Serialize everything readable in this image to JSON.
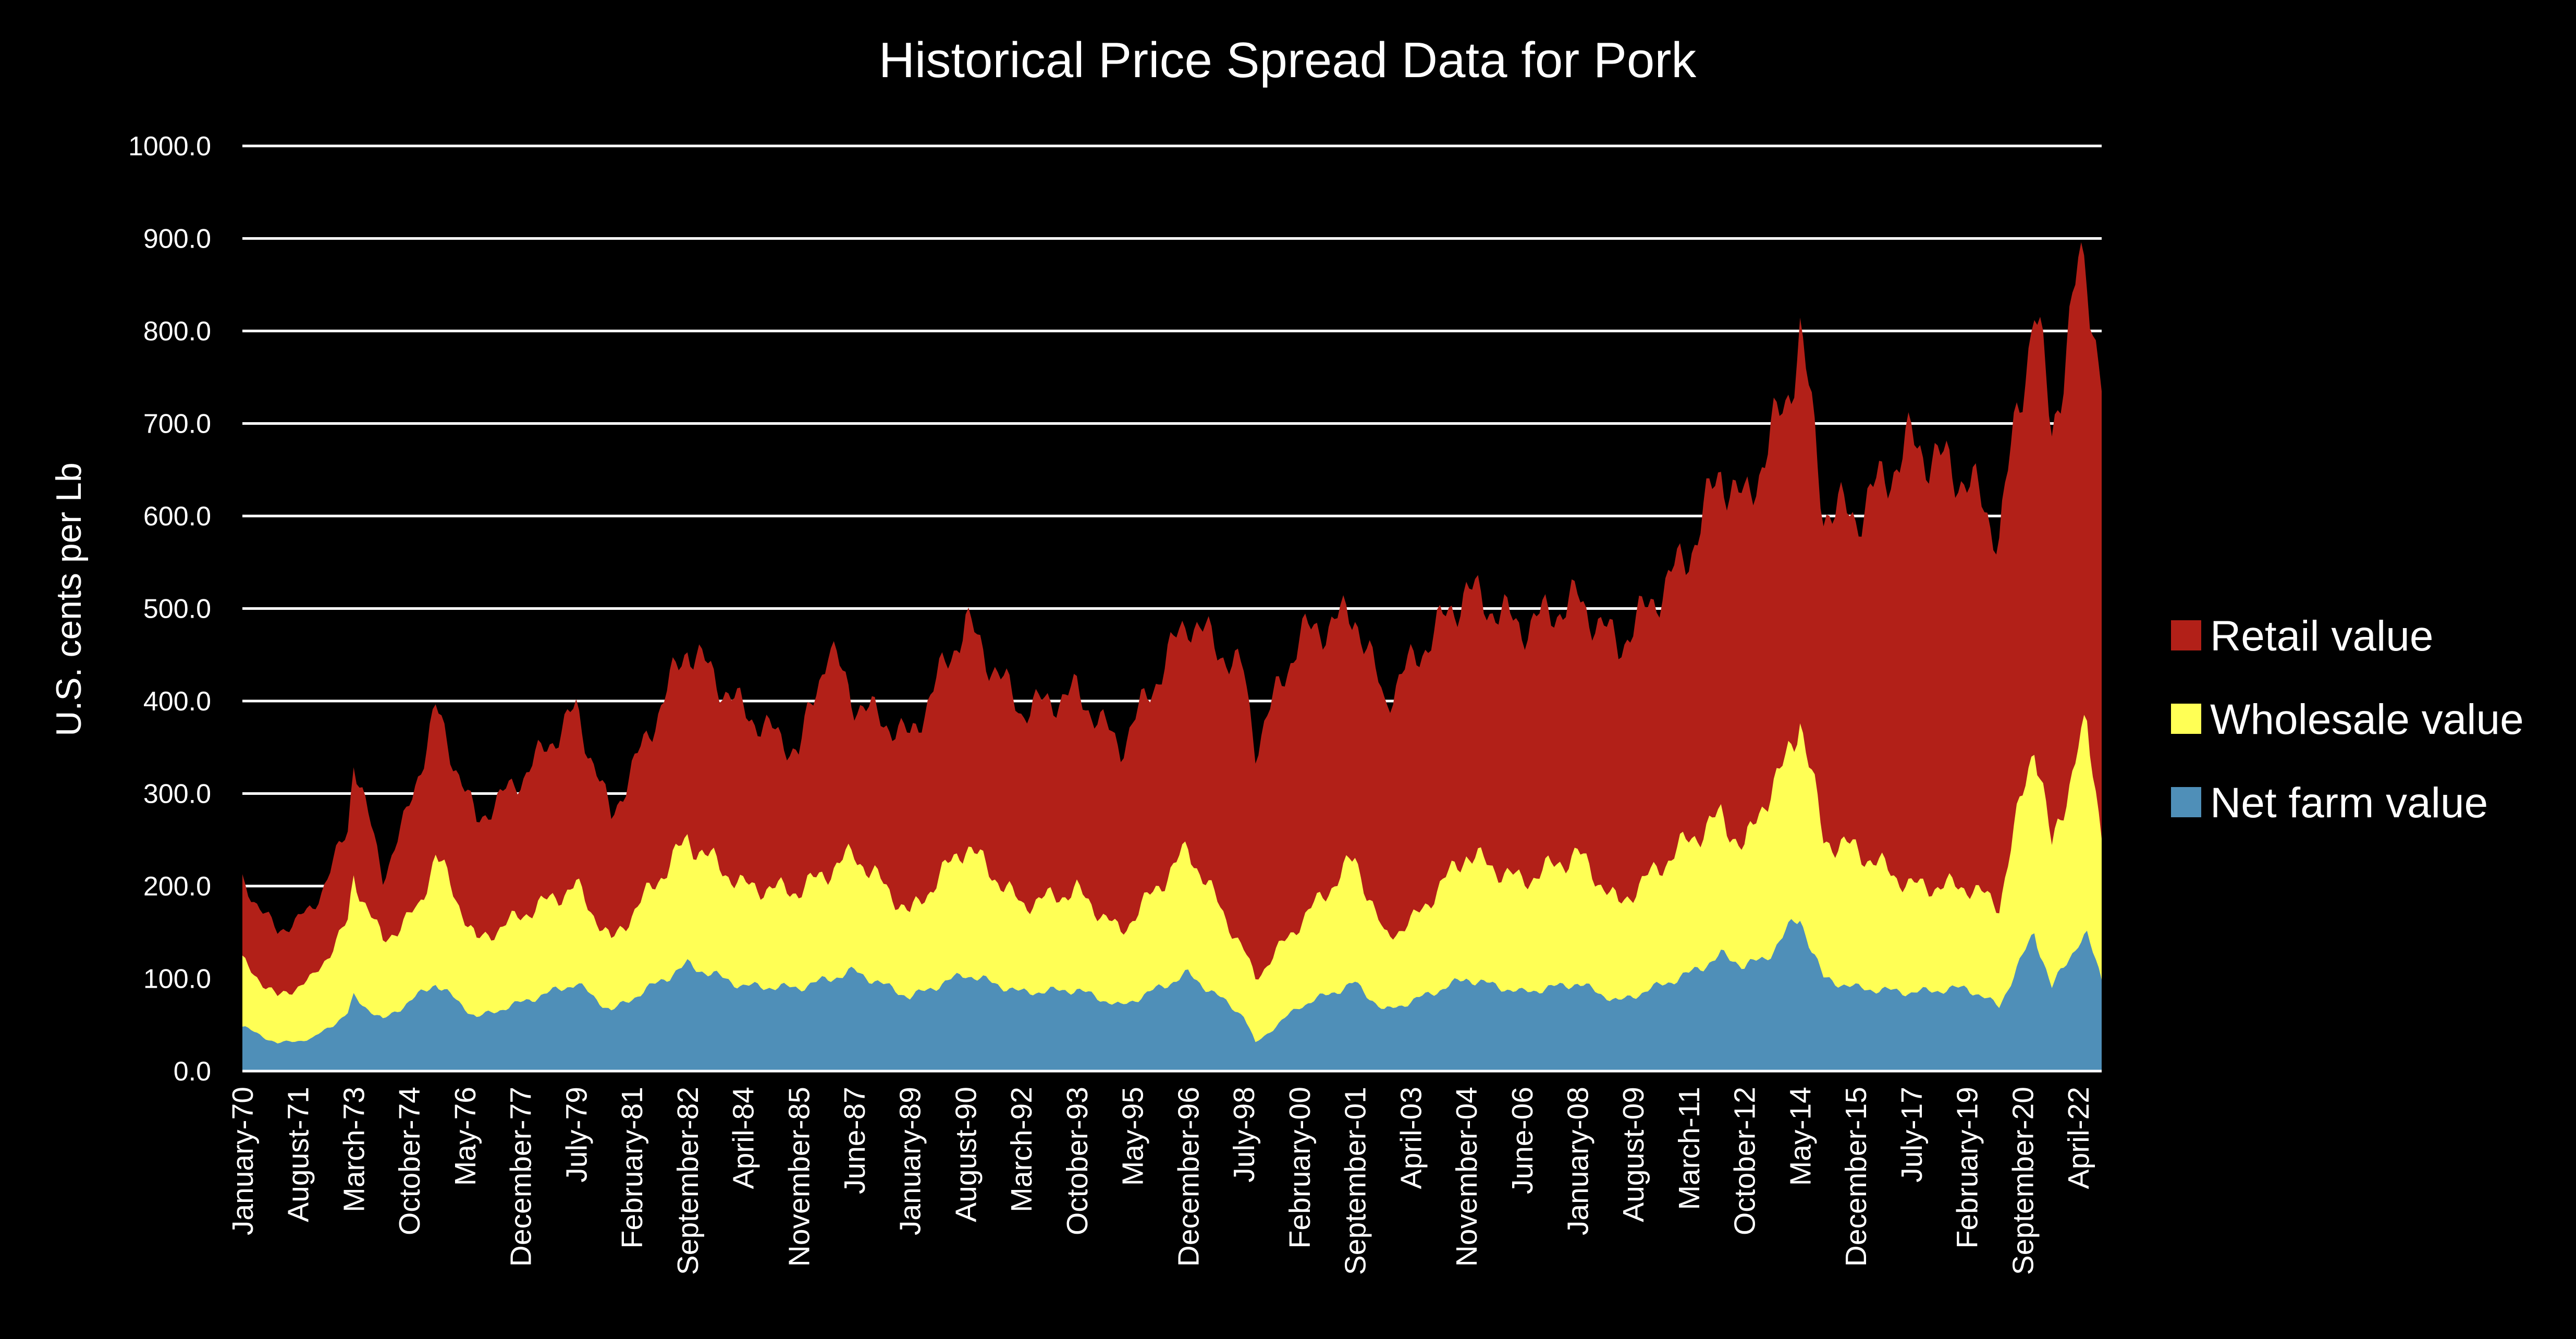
{
  "chart_data": {
    "type": "area",
    "stacked": true,
    "title": "Historical Price Spread Data for Pork",
    "xlabel": "",
    "ylabel": "U.S. cents per Lb",
    "ylim": [
      0,
      1000
    ],
    "y_ticks": [
      "0.0",
      "100.0",
      "200.0",
      "300.0",
      "400.0",
      "500.0",
      "600.0",
      "700.0",
      "800.0",
      "900.0",
      "1000.0"
    ],
    "grid": true,
    "legend_position": "right",
    "x_start": "January-70",
    "x_end": "December-22",
    "x_ticks": [
      "January-70",
      "August-71",
      "March-73",
      "October-74",
      "May-76",
      "December-77",
      "July-79",
      "February-81",
      "September-82",
      "April-84",
      "November-85",
      "June-87",
      "January-89",
      "August-90",
      "March-92",
      "October-93",
      "May-95",
      "December-96",
      "July-98",
      "February-00",
      "September-01",
      "April-03",
      "November-04",
      "June-06",
      "January-08",
      "August-09",
      "March-11",
      "October-12",
      "May-14",
      "December-15",
      "July-17",
      "February-19",
      "September-20",
      "April-22"
    ],
    "x_tick_months": [
      0,
      19,
      38,
      57,
      76,
      95,
      114,
      133,
      152,
      171,
      190,
      209,
      228,
      247,
      266,
      285,
      304,
      323,
      342,
      361,
      380,
      399,
      418,
      437,
      456,
      475,
      494,
      513,
      532,
      551,
      570,
      589,
      608,
      627
    ],
    "series_note": "cumulative (stacked) values in cents per lb at key months; intermediate months interpolated",
    "series": [
      {
        "name": "Net farm value",
        "color": "#4F8FB8",
        "points": [
          [
            0,
            48
          ],
          [
            12,
            30
          ],
          [
            24,
            35
          ],
          [
            36,
            62
          ],
          [
            38,
            80
          ],
          [
            48,
            55
          ],
          [
            66,
            95
          ],
          [
            80,
            58
          ],
          [
            96,
            75
          ],
          [
            114,
            95
          ],
          [
            126,
            65
          ],
          [
            152,
            115
          ],
          [
            171,
            92
          ],
          [
            190,
            90
          ],
          [
            209,
            108
          ],
          [
            228,
            80
          ],
          [
            247,
            105
          ],
          [
            266,
            85
          ],
          [
            285,
            88
          ],
          [
            300,
            70
          ],
          [
            323,
            105
          ],
          [
            342,
            60
          ],
          [
            346,
            30
          ],
          [
            361,
            70
          ],
          [
            380,
            95
          ],
          [
            390,
            65
          ],
          [
            399,
            75
          ],
          [
            418,
            100
          ],
          [
            437,
            85
          ],
          [
            456,
            95
          ],
          [
            470,
            75
          ],
          [
            494,
            105
          ],
          [
            505,
            125
          ],
          [
            513,
            115
          ],
          [
            520,
            120
          ],
          [
            527,
            150
          ],
          [
            532,
            165
          ],
          [
            540,
            100
          ],
          [
            551,
            90
          ],
          [
            570,
            85
          ],
          [
            589,
            90
          ],
          [
            600,
            70
          ],
          [
            612,
            150
          ],
          [
            618,
            90
          ],
          [
            627,
            140
          ],
          [
            630,
            145
          ],
          [
            635,
            100
          ]
        ]
      },
      {
        "name": "Wholesale value",
        "color": "#FFFF55",
        "points": [
          [
            0,
            118
          ],
          [
            12,
            80
          ],
          [
            24,
            100
          ],
          [
            36,
            160
          ],
          [
            38,
            210
          ],
          [
            48,
            140
          ],
          [
            60,
            175
          ],
          [
            66,
            235
          ],
          [
            80,
            140
          ],
          [
            96,
            170
          ],
          [
            114,
            200
          ],
          [
            126,
            140
          ],
          [
            152,
            250
          ],
          [
            171,
            200
          ],
          [
            190,
            195
          ],
          [
            209,
            235
          ],
          [
            228,
            170
          ],
          [
            247,
            245
          ],
          [
            266,
            180
          ],
          [
            285,
            195
          ],
          [
            300,
            150
          ],
          [
            323,
            240
          ],
          [
            342,
            130
          ],
          [
            346,
            100
          ],
          [
            361,
            160
          ],
          [
            380,
            230
          ],
          [
            390,
            145
          ],
          [
            399,
            160
          ],
          [
            418,
            235
          ],
          [
            437,
            205
          ],
          [
            456,
            235
          ],
          [
            470,
            180
          ],
          [
            494,
            250
          ],
          [
            505,
            275
          ],
          [
            513,
            240
          ],
          [
            520,
            295
          ],
          [
            527,
            330
          ],
          [
            532,
            385
          ],
          [
            540,
            250
          ],
          [
            551,
            240
          ],
          [
            570,
            200
          ],
          [
            589,
            200
          ],
          [
            600,
            180
          ],
          [
            612,
            360
          ],
          [
            618,
            240
          ],
          [
            627,
            350
          ],
          [
            630,
            365
          ],
          [
            635,
            265
          ]
        ]
      },
      {
        "name": "Retail value",
        "color": "#B22018",
        "points": [
          [
            0,
            205
          ],
          [
            12,
            150
          ],
          [
            24,
            175
          ],
          [
            36,
            260
          ],
          [
            38,
            340
          ],
          [
            48,
            210
          ],
          [
            56,
            275
          ],
          [
            66,
            390
          ],
          [
            80,
            270
          ],
          [
            96,
            320
          ],
          [
            114,
            390
          ],
          [
            126,
            275
          ],
          [
            152,
            460
          ],
          [
            171,
            390
          ],
          [
            190,
            345
          ],
          [
            200,
            460
          ],
          [
            209,
            400
          ],
          [
            228,
            360
          ],
          [
            247,
            485
          ],
          [
            266,
            390
          ],
          [
            285,
            410
          ],
          [
            300,
            350
          ],
          [
            323,
            490
          ],
          [
            342,
            430
          ],
          [
            346,
            350
          ],
          [
            361,
            470
          ],
          [
            380,
            495
          ],
          [
            390,
            400
          ],
          [
            399,
            440
          ],
          [
            418,
            520
          ],
          [
            437,
            480
          ],
          [
            456,
            510
          ],
          [
            470,
            460
          ],
          [
            494,
            560
          ],
          [
            505,
            650
          ],
          [
            513,
            610
          ],
          [
            520,
            670
          ],
          [
            527,
            720
          ],
          [
            532,
            800
          ],
          [
            540,
            610
          ],
          [
            551,
            600
          ],
          [
            570,
            680
          ],
          [
            589,
            640
          ],
          [
            600,
            580
          ],
          [
            612,
            830
          ],
          [
            618,
            690
          ],
          [
            627,
            860
          ],
          [
            630,
            865
          ],
          [
            635,
            750
          ]
        ]
      }
    ],
    "legend": [
      {
        "label": "Retail value",
        "color": "#B22018"
      },
      {
        "label": "Wholesale value",
        "color": "#FFFF55"
      },
      {
        "label": "Net farm value",
        "color": "#4F8FB8"
      }
    ]
  }
}
